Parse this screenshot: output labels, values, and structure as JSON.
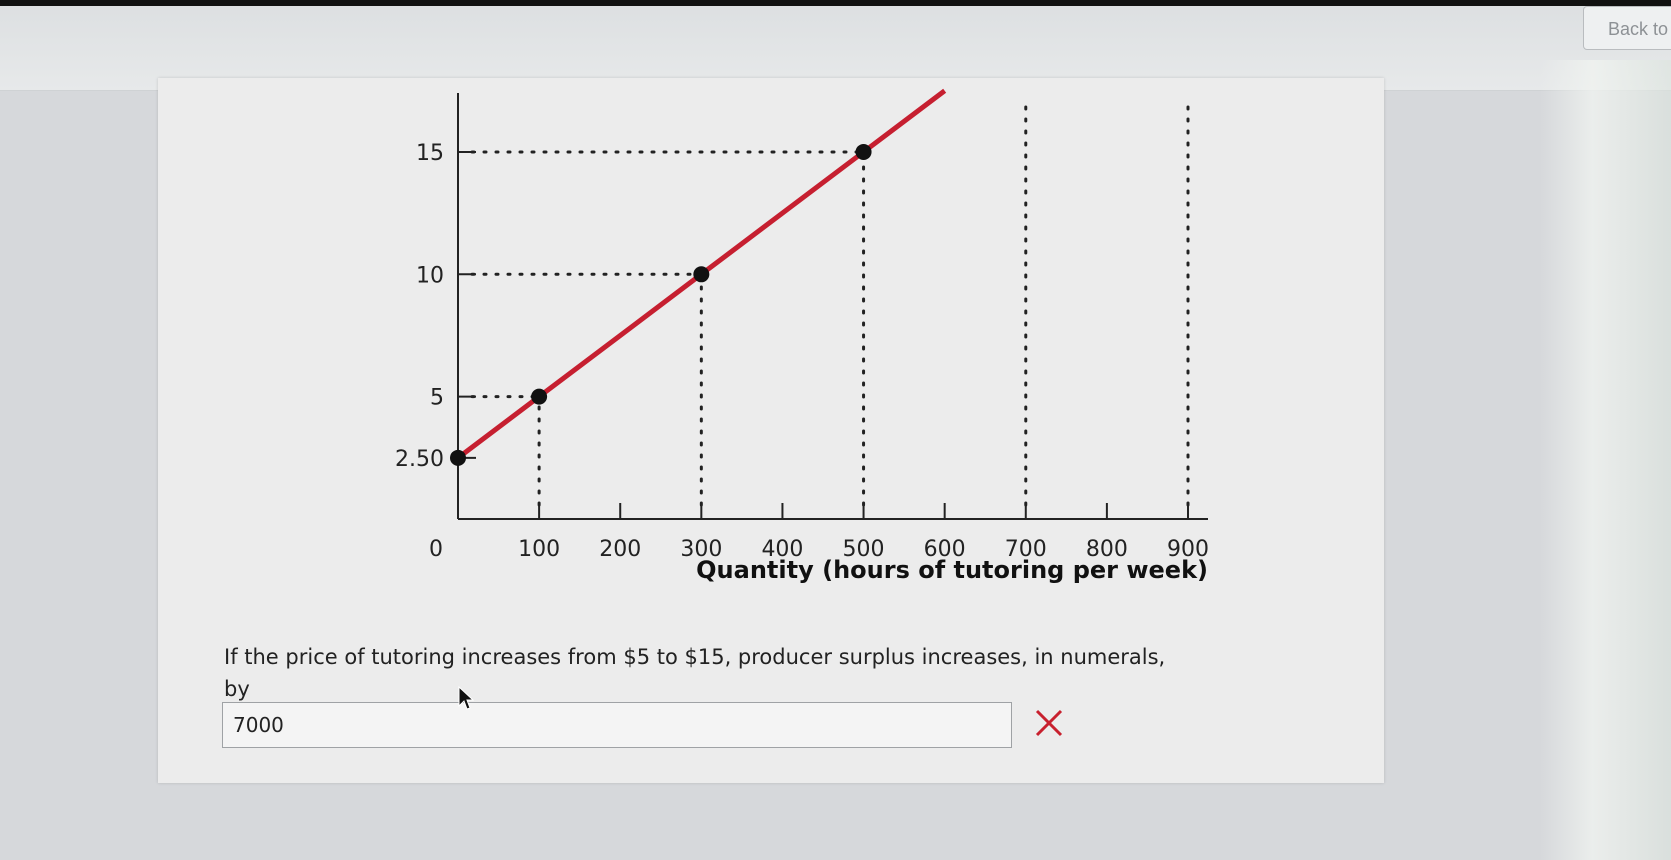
{
  "header": {
    "back_button_label": "Back to"
  },
  "chart_data": {
    "type": "line",
    "xlabel": "Quantity (hours of tutoring per week)",
    "ylabel": "",
    "x_ticks": [
      0,
      100,
      200,
      300,
      400,
      500,
      600,
      700,
      800,
      900
    ],
    "x_tick_labels": [
      "0",
      "100",
      "200",
      "300",
      "400",
      "500",
      "600",
      "700",
      "800",
      "900"
    ],
    "y_ticks": [
      2.5,
      5,
      10,
      15
    ],
    "y_tick_labels": [
      "2.50",
      "5",
      "10",
      "15"
    ],
    "xlim": [
      0,
      900
    ],
    "ylim": [
      0,
      17
    ],
    "series": [
      {
        "x": [
          0,
          100,
          300,
          500,
          600
        ],
        "y": [
          2.5,
          5,
          10,
          15,
          17.5
        ],
        "color": "#c61f30"
      }
    ],
    "points": [
      {
        "x": 0,
        "y": 2.5
      },
      {
        "x": 100,
        "y": 5
      },
      {
        "x": 300,
        "y": 10
      },
      {
        "x": 500,
        "y": 15
      }
    ],
    "dotted_guides": {
      "horizontal_at": [
        5,
        10,
        15
      ],
      "vertical_at": [
        100,
        300,
        500,
        700,
        900
      ]
    },
    "grid": false
  },
  "question": {
    "text": "If the price of tutoring increases from $5 to $15, producer surplus increases, in numerals, by",
    "blank": "$______."
  },
  "answer": {
    "value": "7000",
    "status": "incorrect",
    "status_color": "#c8202e"
  }
}
